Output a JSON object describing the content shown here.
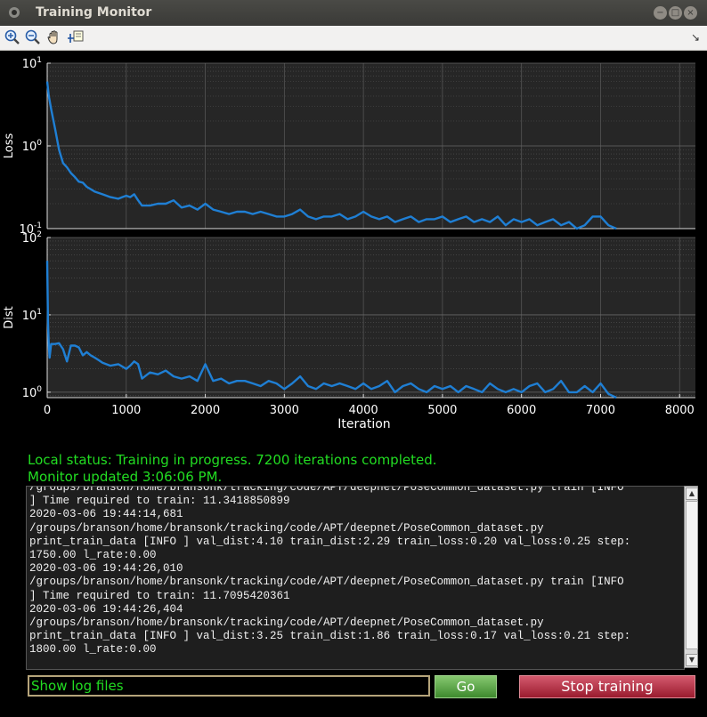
{
  "window": {
    "title": "Training Monitor",
    "controls": [
      "minimize-icon",
      "maximize-icon",
      "close-icon"
    ]
  },
  "toolbar": {
    "tools": [
      "zoom-in-icon",
      "zoom-out-icon",
      "pan-hand-icon",
      "data-cursor-icon"
    ],
    "corner": "↘"
  },
  "chart_data": [
    {
      "type": "line",
      "ylabel": "Loss",
      "yscale": "log",
      "ylim": [
        0.1,
        10
      ],
      "xlim": [
        0,
        8200
      ],
      "y_ticks": [
        {
          "b": "10",
          "e": "1",
          "v": 10
        },
        {
          "b": "10",
          "e": "0",
          "v": 1
        },
        {
          "b": "10",
          "e": "-1",
          "v": 0.1
        }
      ],
      "grid": true,
      "color": "#1f7fd4",
      "x": [
        0,
        20,
        50,
        100,
        150,
        200,
        250,
        300,
        350,
        400,
        450,
        500,
        550,
        600,
        650,
        700,
        750,
        800,
        850,
        900,
        950,
        1000,
        1050,
        1100,
        1150,
        1200,
        1300,
        1400,
        1500,
        1600,
        1700,
        1800,
        1900,
        2000,
        2100,
        2200,
        2300,
        2400,
        2500,
        2600,
        2700,
        2800,
        2900,
        3000,
        3100,
        3200,
        3300,
        3400,
        3500,
        3600,
        3700,
        3800,
        3900,
        4000,
        4100,
        4200,
        4300,
        4400,
        4500,
        4600,
        4700,
        4800,
        4900,
        5000,
        5100,
        5200,
        5300,
        5400,
        5500,
        5600,
        5700,
        5800,
        5900,
        6000,
        6100,
        6200,
        6300,
        6400,
        6500,
        6600,
        6700,
        6800,
        6900,
        7000,
        7100,
        7200
      ],
      "y": [
        6,
        4,
        2.8,
        1.6,
        0.9,
        0.62,
        0.55,
        0.47,
        0.42,
        0.37,
        0.36,
        0.32,
        0.3,
        0.28,
        0.27,
        0.26,
        0.25,
        0.24,
        0.235,
        0.23,
        0.24,
        0.25,
        0.24,
        0.26,
        0.22,
        0.19,
        0.19,
        0.2,
        0.2,
        0.22,
        0.18,
        0.19,
        0.17,
        0.2,
        0.17,
        0.16,
        0.15,
        0.16,
        0.16,
        0.15,
        0.16,
        0.15,
        0.14,
        0.14,
        0.15,
        0.17,
        0.14,
        0.13,
        0.14,
        0.14,
        0.15,
        0.13,
        0.14,
        0.16,
        0.14,
        0.13,
        0.14,
        0.12,
        0.13,
        0.14,
        0.12,
        0.13,
        0.13,
        0.14,
        0.12,
        0.13,
        0.14,
        0.12,
        0.13,
        0.12,
        0.14,
        0.11,
        0.13,
        0.12,
        0.13,
        0.11,
        0.12,
        0.13,
        0.11,
        0.12,
        0.1,
        0.11,
        0.14,
        0.14,
        0.11,
        0.1
      ]
    },
    {
      "type": "line",
      "ylabel": "Dist",
      "xlabel": "Iteration",
      "yscale": "log",
      "ylim": [
        0.85,
        100
      ],
      "xlim": [
        0,
        8200
      ],
      "x_ticks": [
        "0",
        "1000",
        "2000",
        "3000",
        "4000",
        "5000",
        "6000",
        "7000",
        "8000"
      ],
      "y_ticks": [
        {
          "b": "10",
          "e": "2",
          "v": 100
        },
        {
          "b": "10",
          "e": "1",
          "v": 10
        },
        {
          "b": "10",
          "e": "0",
          "v": 1
        }
      ],
      "grid": true,
      "color": "#1f7fd4",
      "x": [
        0,
        10,
        20,
        30,
        50,
        100,
        150,
        200,
        250,
        300,
        350,
        400,
        450,
        500,
        550,
        600,
        650,
        700,
        800,
        900,
        1000,
        1050,
        1100,
        1150,
        1200,
        1300,
        1400,
        1500,
        1600,
        1700,
        1800,
        1900,
        2000,
        2100,
        2200,
        2300,
        2400,
        2500,
        2600,
        2700,
        2800,
        2900,
        3000,
        3100,
        3200,
        3300,
        3400,
        3500,
        3600,
        3700,
        3800,
        3900,
        4000,
        4100,
        4200,
        4300,
        4400,
        4500,
        4600,
        4700,
        4800,
        4900,
        5000,
        5100,
        5200,
        5300,
        5400,
        5500,
        5600,
        5700,
        5800,
        5900,
        6000,
        6100,
        6200,
        6300,
        6400,
        6500,
        6600,
        6700,
        6800,
        6900,
        7000,
        7100,
        7200
      ],
      "y": [
        50,
        8,
        4,
        2.8,
        4.2,
        4.2,
        4.3,
        3.6,
        2.5,
        4.0,
        4.0,
        3.8,
        3.0,
        3.3,
        3.0,
        2.8,
        2.6,
        2.4,
        2.2,
        2.3,
        2.0,
        2.2,
        2.5,
        2.3,
        1.5,
        1.8,
        1.7,
        1.9,
        1.6,
        1.5,
        1.6,
        1.4,
        2.3,
        1.4,
        1.5,
        1.3,
        1.4,
        1.4,
        1.3,
        1.2,
        1.4,
        1.3,
        1.1,
        1.3,
        1.6,
        1.2,
        1.1,
        1.3,
        1.2,
        1.3,
        1.2,
        1.1,
        1.3,
        1.1,
        1.2,
        1.4,
        1.0,
        1.2,
        1.3,
        1.1,
        1.0,
        1.2,
        1.1,
        1.2,
        1.0,
        1.2,
        1.1,
        1.0,
        1.3,
        1.1,
        1.0,
        1.1,
        1.0,
        1.2,
        1.3,
        1.0,
        1.1,
        1.4,
        1.0,
        1.0,
        1.2,
        1.0,
        1.3,
        0.95,
        0.8
      ]
    }
  ],
  "status": {
    "line1": "Local status: Training in progress. 7200 iterations completed.",
    "line2": "Monitor updated  3:06:06 PM."
  },
  "log": {
    "lines": [
      "/groups/branson/home/bransonk/tracking/code/APT/deepnet/PoseCommon_dataset.py train [INFO",
      "] Time required to train: 11.3418850899",
      "2020-03-06 19:44:14,681",
      "/groups/branson/home/bransonk/tracking/code/APT/deepnet/PoseCommon_dataset.py",
      "print_train_data [INFO ] val_dist:4.10 train_dist:2.29 train_loss:0.20 val_loss:0.25 step:",
      "1750.00 l_rate:0.00",
      "2020-03-06 19:44:26,010",
      "/groups/branson/home/bransonk/tracking/code/APT/deepnet/PoseCommon_dataset.py train [INFO",
      "] Time required to train: 11.7095420361",
      "2020-03-06 19:44:26,404",
      "/groups/branson/home/bransonk/tracking/code/APT/deepnet/PoseCommon_dataset.py",
      "print_train_data [INFO ] val_dist:3.25 train_dist:1.86 train_loss:0.17 val_loss:0.21 step:",
      "1800.00 l_rate:0.00"
    ]
  },
  "controls": {
    "log_select": "Show log files",
    "go_label": "Go",
    "stop_label": "Stop training"
  }
}
